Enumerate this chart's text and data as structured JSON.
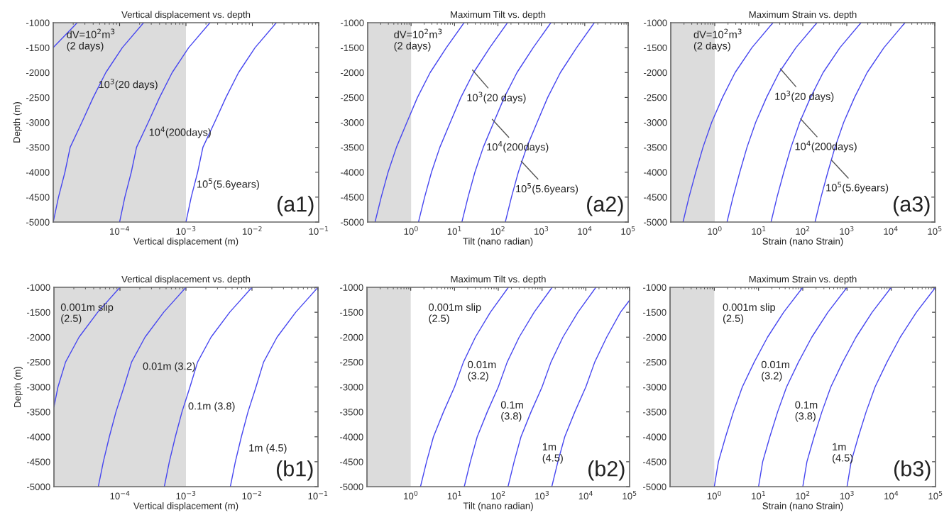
{
  "chart_data": [
    {
      "type": "line",
      "title": "Vertical displacement vs. depth",
      "xlabel": "Vertical displacement (m)",
      "ylabel": "Depth (m)",
      "log": "x",
      "grid": false,
      "marker": "none",
      "xlim": [
        1e-05,
        0.1
      ],
      "xticks": [
        {
          "value": 0.0001,
          "label": "10$^{−4}$"
        },
        {
          "value": 0.001,
          "label": "10$^{−3}$"
        },
        {
          "value": 0.01,
          "label": "10$^{−2}$"
        },
        {
          "value": 0.1,
          "label": "10$^{−1}$"
        }
      ],
      "ylim": [
        -5000,
        -1000
      ],
      "yticks": [
        -5000,
        -4500,
        -4000,
        -3500,
        -3000,
        -2500,
        -2000,
        -1500,
        -1000
      ],
      "bands": [
        {
          "axis": "x",
          "from": 1e-05,
          "to": 0.001,
          "color": "#dcdcdc"
        }
      ],
      "series": [
        {
          "color": "#4646f0",
          "x": [
            2.3e-05,
            1e-05
          ],
          "values": [
            -1000,
            -1500
          ]
        },
        {
          "color": "#4646f0",
          "x": [
            0.00023,
            0.00011,
            6.2e-05,
            4e-05,
            2.7e-05,
            1.8e-05,
            1.5e-05,
            1.2e-05,
            1e-05
          ],
          "values": [
            -1000,
            -1500,
            -2000,
            -2500,
            -3000,
            -3500,
            -4000,
            -4500,
            -5000
          ]
        },
        {
          "color": "#4646f0",
          "x": [
            0.0023,
            0.0011,
            0.00062,
            0.0004,
            0.00027,
            0.00018,
            0.00015,
            0.00012,
            0.0001
          ],
          "values": [
            -1000,
            -1500,
            -2000,
            -2500,
            -3000,
            -3500,
            -4000,
            -4500,
            -5000
          ]
        },
        {
          "color": "#4646f0",
          "x": [
            0.023,
            0.011,
            0.0062,
            0.004,
            0.0027,
            0.0018,
            0.0015,
            0.0012,
            0.001
          ],
          "values": [
            -1000,
            -1500,
            -2000,
            -2500,
            -3000,
            -3500,
            -4000,
            -4500,
            -5000
          ]
        }
      ],
      "annotations": [
        "dV=10$^{2}$m$^{3}$\n(2 days)",
        "10$^{3}$(20 days)",
        "10$^{4}$(200days)",
        "10$^{5}$(5.6years)",
        "(a1)"
      ]
    },
    {
      "type": "line",
      "title": "Maximum Tilt vs. depth",
      "xlabel": "Tilt (nano radian)",
      "log": "x",
      "grid": false,
      "marker": "none",
      "xlim": [
        0.1,
        100000
      ],
      "xticks": [
        {
          "value": 1,
          "label": "10$^{0}$"
        },
        {
          "value": 10,
          "label": "10$^{1}$"
        },
        {
          "value": 100,
          "label": "10$^{2}$"
        },
        {
          "value": 1000,
          "label": "10$^{3}$"
        },
        {
          "value": 10000,
          "label": "10$^{4}$"
        },
        {
          "value": 100000,
          "label": "10$^{5}$"
        }
      ],
      "ylim": [
        -5000,
        -1000
      ],
      "yticks": [
        -5000,
        -4500,
        -4000,
        -3500,
        -3000,
        -2500,
        -2000,
        -1500,
        -1000
      ],
      "bands": [
        {
          "axis": "x",
          "from": 0.1,
          "to": 1,
          "color": "#dcdcdc"
        }
      ],
      "series": [
        {
          "color": "#4646f0",
          "x": [
            16.6,
            6.5,
            2.75,
            1.4,
            0.8,
            0.46,
            0.295,
            0.205,
            0.148
          ],
          "values": [
            -1000,
            -1500,
            -2000,
            -2500,
            -3000,
            -3500,
            -4000,
            -4500,
            -5000
          ]
        },
        {
          "color": "#4646f0",
          "x": [
            166,
            65,
            27.5,
            14,
            8,
            4.6,
            2.95,
            2.05,
            1.48
          ],
          "values": [
            -1000,
            -1500,
            -2000,
            -2500,
            -3000,
            -3500,
            -4000,
            -4500,
            -5000
          ]
        },
        {
          "color": "#4646f0",
          "x": [
            1660,
            650,
            275,
            140,
            80,
            46,
            29.5,
            20.5,
            14.8
          ],
          "values": [
            -1000,
            -1500,
            -2000,
            -2500,
            -3000,
            -3500,
            -4000,
            -4500,
            -5000
          ]
        },
        {
          "color": "#4646f0",
          "x": [
            16600,
            6500,
            2750,
            1400,
            800,
            460,
            295,
            205,
            148
          ],
          "values": [
            -1000,
            -1500,
            -2000,
            -2500,
            -3000,
            -3500,
            -4000,
            -4500,
            -5000
          ]
        }
      ],
      "annotations": [
        "dV=10$^{2}$m$^{3}$\n(2 days)",
        {
          "text": "10$^{3}$(20 days)",
          "x": 26,
          "y": -1950
        },
        {
          "text": "10$^{4}$(200days)",
          "x": 74,
          "y": -2940
        },
        {
          "text": "10$^{5}$(5.6years)",
          "x": 345,
          "y": -3780
        },
        "(a2)"
      ]
    },
    {
      "type": "line",
      "title": "Maximum Strain vs. depth",
      "xlabel": "Strain (nano Strain)",
      "log": "x",
      "grid": false,
      "marker": "none",
      "xlim": [
        0.1,
        100000
      ],
      "xticks": [
        {
          "value": 1,
          "label": "10$^{0}$"
        },
        {
          "value": 10,
          "label": "10$^{1}$"
        },
        {
          "value": 100,
          "label": "10$^{2}$"
        },
        {
          "value": 1000,
          "label": "10$^{3}$"
        },
        {
          "value": 10000,
          "label": "10$^{4}$"
        },
        {
          "value": 100000,
          "label": "10$^{5}$"
        }
      ],
      "ylim": [
        -5000,
        -1000
      ],
      "yticks": [
        -5000,
        -4500,
        -4000,
        -3500,
        -3000,
        -2500,
        -2000,
        -1500,
        -1000
      ],
      "bands": [
        {
          "axis": "x",
          "from": 0.1,
          "to": 1,
          "color": "#dcdcdc"
        }
      ],
      "series": [
        {
          "color": "#4646f0",
          "x": [
            21,
            7,
            2.9,
            1.5,
            0.85,
            0.54,
            0.37,
            0.26,
            0.19
          ],
          "values": [
            -1000,
            -1500,
            -2000,
            -2500,
            -3000,
            -3500,
            -4000,
            -4500,
            -5000
          ]
        },
        {
          "color": "#4646f0",
          "x": [
            210,
            70,
            29,
            15,
            8.5,
            5.4,
            3.7,
            2.6,
            1.9
          ],
          "values": [
            -1000,
            -1500,
            -2000,
            -2500,
            -3000,
            -3500,
            -4000,
            -4500,
            -5000
          ]
        },
        {
          "color": "#4646f0",
          "x": [
            2100,
            700,
            290,
            150,
            85,
            54,
            37,
            26,
            19
          ],
          "values": [
            -1000,
            -1500,
            -2000,
            -2500,
            -3000,
            -3500,
            -4000,
            -4500,
            -5000
          ]
        },
        {
          "color": "#4646f0",
          "x": [
            21000,
            7000,
            2900,
            1500,
            850,
            540,
            370,
            260,
            190
          ],
          "values": [
            -1000,
            -1500,
            -2000,
            -2500,
            -3000,
            -3500,
            -4000,
            -4500,
            -5000
          ]
        }
      ],
      "annotations": [
        "dV=10$^{2}$m$^{3}$\n(2 days)",
        {
          "text": "10$^{3}$(20 days)",
          "x": 31,
          "y": -1925
        },
        {
          "text": "10$^{4}$(200days)",
          "x": 89,
          "y": -2930
        },
        {
          "text": "10$^{5}$(5.6years)",
          "x": 450,
          "y": -3757
        },
        "(a3)"
      ]
    },
    {
      "type": "line",
      "title": "Vertical displacement vs. depth",
      "xlabel": "Vertical displacement (m)",
      "ylabel": "Depth (m)",
      "log": "x",
      "grid": false,
      "marker": "none",
      "xlim": [
        1e-05,
        0.1
      ],
      "xticks": [
        {
          "value": 0.0001,
          "label": "10$^{−4}$"
        },
        {
          "value": 0.001,
          "label": "10$^{−3}$"
        },
        {
          "value": 0.01,
          "label": "10$^{−2}$"
        },
        {
          "value": 0.1,
          "label": "10$^{−1}$"
        }
      ],
      "ylim": [
        -5000,
        -1000
      ],
      "yticks": [
        -5000,
        -4500,
        -4000,
        -3500,
        -3000,
        -2500,
        -2000,
        -1500,
        -1000
      ],
      "bands": [
        {
          "axis": "x",
          "from": 1e-05,
          "to": 0.001,
          "color": "#dcdcdc"
        }
      ],
      "series": [
        {
          "color": "#4646f0",
          "x": [
            0.0001,
            4.6e-05,
            2.4e-05,
            1.5e-05,
            1.15e-05,
            1e-05
          ],
          "values": [
            -1000,
            -1500,
            -2000,
            -2500,
            -3000,
            -3400
          ]
        },
        {
          "color": "#4646f0",
          "x": [
            0.001,
            0.00046,
            0.00024,
            0.00015,
            0.000115,
            8.7e-05,
            6.9e-05,
            5.6e-05,
            4.7e-05
          ],
          "values": [
            -1000,
            -1500,
            -2000,
            -2500,
            -3000,
            -3500,
            -4000,
            -4500,
            -5000
          ]
        },
        {
          "color": "#4646f0",
          "x": [
            0.01,
            0.0046,
            0.0024,
            0.0015,
            0.00115,
            0.00087,
            0.00069,
            0.00056,
            0.00047
          ],
          "values": [
            -1000,
            -1500,
            -2000,
            -2500,
            -3000,
            -3500,
            -4000,
            -4500,
            -5000
          ]
        },
        {
          "color": "#4646f0",
          "x": [
            0.1,
            0.046,
            0.024,
            0.015,
            0.0115,
            0.0087,
            0.0069,
            0.0056,
            0.0047
          ],
          "values": [
            -1000,
            -1500,
            -2000,
            -2500,
            -3000,
            -3500,
            -4000,
            -4500,
            -5000
          ]
        }
      ],
      "annotations": [
        "0.001m slip\n(2.5)",
        "0.01m (3.2)",
        "0.1m (3.8)",
        "1m (4.5)",
        "(b1)"
      ]
    },
    {
      "type": "line",
      "title": "Maximum Tilt vs. depth",
      "xlabel": "Tilt (nano radian)",
      "log": "x",
      "grid": false,
      "marker": "none",
      "xlim": [
        0.1,
        100000
      ],
      "xticks": [
        {
          "value": 1,
          "label": "10$^{0}$"
        },
        {
          "value": 10,
          "label": "10$^{1}$"
        },
        {
          "value": 100,
          "label": "10$^{2}$"
        },
        {
          "value": 1000,
          "label": "10$^{3}$"
        },
        {
          "value": 10000,
          "label": "10$^{4}$"
        },
        {
          "value": 100000,
          "label": "10$^{5}$"
        }
      ],
      "ylim": [
        -5000,
        -1000
      ],
      "yticks": [
        -5000,
        -4500,
        -4000,
        -3500,
        -3000,
        -2500,
        -2000,
        -1500,
        -1000
      ],
      "bands": [
        {
          "axis": "x",
          "from": 0.1,
          "to": 1,
          "color": "#dcdcdc"
        }
      ],
      "series": [
        {
          "color": "#4646f0",
          "x": [
            170,
            66,
            30,
            16,
            10,
            5.6,
            3.3,
            2.3,
            1.67
          ],
          "values": [
            -1000,
            -1500,
            -2000,
            -2500,
            -3000,
            -3500,
            -4000,
            -4500,
            -5000
          ]
        },
        {
          "color": "#4646f0",
          "x": [
            1700,
            660,
            300,
            160,
            100,
            56,
            33,
            23,
            16.7
          ],
          "values": [
            -1000,
            -1500,
            -2000,
            -2500,
            -3000,
            -3500,
            -4000,
            -4500,
            -5000
          ]
        },
        {
          "color": "#4646f0",
          "x": [
            17000,
            6600,
            3000,
            1600,
            1000,
            560,
            330,
            230,
            167
          ],
          "values": [
            -1000,
            -1500,
            -2000,
            -2500,
            -3000,
            -3500,
            -4000,
            -4500,
            -5000
          ]
        },
        {
          "color": "#4646f0",
          "x": [
            100000,
            62000,
            30000,
            16000,
            10000,
            5600,
            3300,
            2300,
            1670
          ],
          "values": [
            -1260,
            -1500,
            -2000,
            -2500,
            -3000,
            -3500,
            -4000,
            -4500,
            -5000
          ]
        }
      ],
      "annotations": [
        "0.001m slip\n(2.5)",
        "0.01m\n(3.2)",
        "0.1m\n(3.8)",
        "1m\n(4.5)",
        "(b2)"
      ]
    },
    {
      "type": "line",
      "title": "Maximum Strain vs. depth",
      "xlabel": "Strain (nano Strain)",
      "log": "x",
      "grid": false,
      "marker": "none",
      "xlim": [
        0.1,
        100000
      ],
      "xticks": [
        {
          "value": 1,
          "label": "10$^{0}$"
        },
        {
          "value": 10,
          "label": "10$^{1}$"
        },
        {
          "value": 100,
          "label": "10$^{2}$"
        },
        {
          "value": 1000,
          "label": "10$^{3}$"
        },
        {
          "value": 10000,
          "label": "10$^{4}$"
        },
        {
          "value": 100000,
          "label": "10$^{5}$"
        }
      ],
      "ylim": [
        -5000,
        -1000
      ],
      "yticks": [
        -5000,
        -4500,
        -4000,
        -3500,
        -3000,
        -2500,
        -2000,
        -1500,
        -1000
      ],
      "bands": [
        {
          "axis": "x",
          "from": 0.1,
          "to": 1,
          "color": "#dcdcdc"
        }
      ],
      "series": [
        {
          "color": "#4646f0",
          "x": [
            100,
            37,
            16,
            8,
            4.3,
            2.7,
            1.8,
            1.24,
            1.0
          ],
          "values": [
            -1000,
            -1500,
            -2000,
            -2500,
            -3000,
            -3500,
            -4000,
            -4500,
            -5000
          ]
        },
        {
          "color": "#4646f0",
          "x": [
            1000,
            370,
            160,
            80,
            43,
            27,
            18,
            12.4,
            10
          ],
          "values": [
            -1000,
            -1500,
            -2000,
            -2500,
            -3000,
            -3500,
            -4000,
            -4500,
            -5000
          ]
        },
        {
          "color": "#4646f0",
          "x": [
            10000,
            3700,
            1600,
            800,
            430,
            270,
            180,
            124,
            100
          ],
          "values": [
            -1000,
            -1500,
            -2000,
            -2500,
            -3000,
            -3500,
            -4000,
            -4500,
            -5000
          ]
        },
        {
          "color": "#4646f0",
          "x": [
            100000,
            37000,
            16000,
            8000,
            4300,
            2700,
            1800,
            1240,
            1000
          ],
          "values": [
            -1000,
            -1500,
            -2000,
            -2500,
            -3000,
            -3500,
            -4000,
            -4500,
            -5000
          ]
        }
      ],
      "annotations": [
        "0.001m slip\n(2.5)",
        "0.01m\n(3.2)",
        "0.1m\n(3.8)",
        "1m\n(4.5)",
        "(b3)"
      ]
    }
  ]
}
